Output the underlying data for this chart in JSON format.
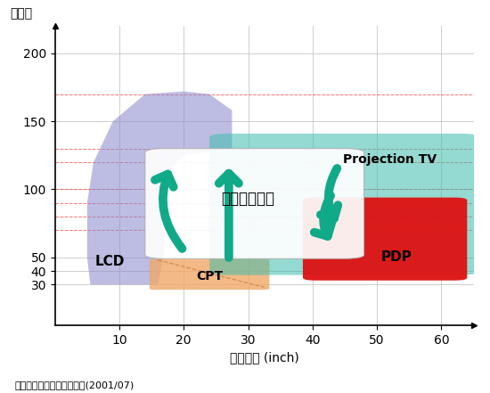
{
  "title_y": "萬畫素",
  "title_x": "螢幕尺寸 (inch)",
  "source": "資料來源：工研院經資中心(2001/07)",
  "xlim": [
    0,
    65
  ],
  "ylim": [
    0,
    220
  ],
  "xticks": [
    10,
    20,
    30,
    40,
    50,
    60
  ],
  "yticks_display": [
    30,
    40,
    50,
    100,
    150,
    200
  ],
  "red_dashed_lines": [
    70,
    80,
    90,
    100,
    120,
    130,
    170
  ],
  "lcd_color": "#8888cc",
  "lcd_alpha": 0.55,
  "cpt_color": "#f0a868",
  "cpt_alpha": 0.8,
  "pdp_color": "#dd1111",
  "pdp_alpha": 0.95,
  "proj_color": "#3dbdad",
  "proj_alpha": 0.55,
  "next_gen_color": "#ffffff",
  "next_gen_alpha": 0.92,
  "arrow_color": "#11aa88",
  "bg_color": "#ffffff"
}
